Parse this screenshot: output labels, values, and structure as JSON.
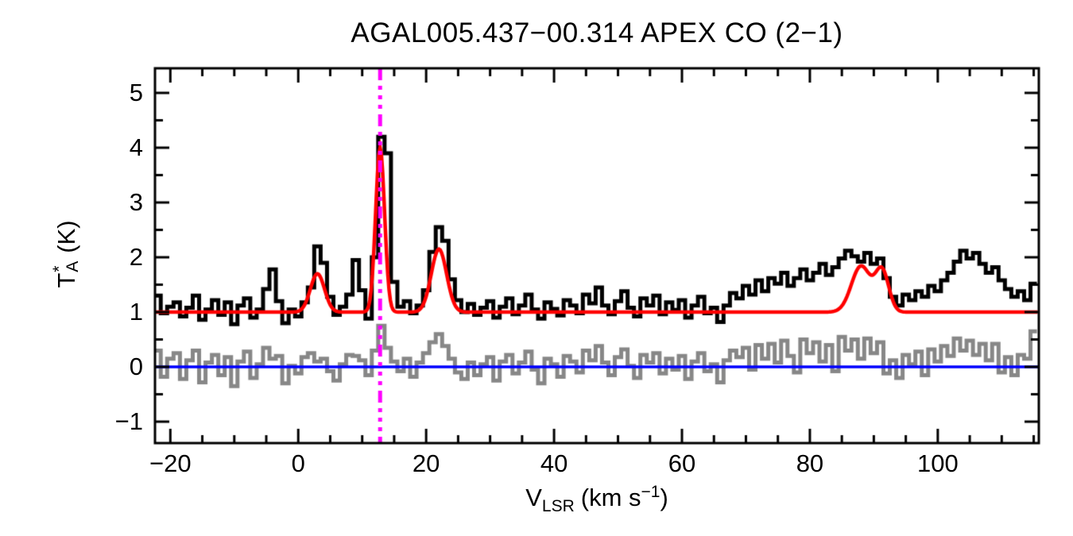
{
  "figure": {
    "background": "#ffffff"
  },
  "chart_data": {
    "type": "line",
    "title": "AGAL005.437−00.314  APEX CO (2−1)",
    "xlabel": {
      "symbol": "V",
      "symbol_sub": "LSR",
      "unit_open": "(km s",
      "unit_exp": "−1",
      "unit_close": ")"
    },
    "ylabel": {
      "symbol": "T",
      "symbol_sup": "*",
      "symbol_sub": "A",
      "unit": "(K)"
    },
    "xlim": [
      -22.4,
      115.8
    ],
    "ylim": [
      -1.39,
      5.45
    ],
    "xticks": [
      -20,
      0,
      20,
      40,
      60,
      80,
      100
    ],
    "yticks": [
      -1,
      0,
      1,
      2,
      3,
      4,
      5
    ],
    "xtick_minor_interval": 5,
    "ytick_minor_interval": 0.5,
    "grid": false,
    "legend": "none",
    "colors": {
      "spectrum": "#000000",
      "fit": "#ff0000",
      "residual": "#878787",
      "zero_line": "#0000ff",
      "marker_line": "#ff00ff",
      "axes": "#000000"
    },
    "series": [
      {
        "name": "spectrum",
        "style": "histogram-step",
        "color": "#000000",
        "x_start": -22,
        "dx": 1,
        "values": [
          1.3,
          0.98,
          1.1,
          1.18,
          0.92,
          1.08,
          1.3,
          0.86,
          1.05,
          1.22,
          0.95,
          1.18,
          0.78,
          1.12,
          1.25,
          0.9,
          1.05,
          1.42,
          1.78,
          1.2,
          0.8,
          1.05,
          0.92,
          1.18,
          1.45,
          2.2,
          1.9,
          1.28,
          0.95,
          1.1,
          1.32,
          1.95,
          1.4,
          0.88,
          2.0,
          4.2,
          3.9,
          1.55,
          1.1,
          1.2,
          0.98,
          1.12,
          1.4,
          2.1,
          2.55,
          2.3,
          1.6,
          1.22,
          1.0,
          1.15,
          0.95,
          1.08,
          1.2,
          0.9,
          1.1,
          1.25,
          0.96,
          1.12,
          1.32,
          1.05,
          0.88,
          1.18,
          1.06,
          0.94,
          1.22,
          1.12,
          0.98,
          1.32,
          1.16,
          1.45,
          1.12,
          0.96,
          1.2,
          1.38,
          1.08,
          0.92,
          1.25,
          1.12,
          1.3,
          0.96,
          1.18,
          1.04,
          1.22,
          0.9,
          1.12,
          1.28,
          0.98,
          1.08,
          0.82,
          1.12,
          1.35,
          1.25,
          1.48,
          1.32,
          1.58,
          1.38,
          1.62,
          1.52,
          1.72,
          1.48,
          1.62,
          1.78,
          1.58,
          1.72,
          1.88,
          1.68,
          1.82,
          1.98,
          2.12,
          2.02,
          1.92,
          2.08,
          1.88,
          1.98,
          1.62,
          1.28,
          1.12,
          1.32,
          1.22,
          1.38,
          1.28,
          1.48,
          1.38,
          1.58,
          1.72,
          1.92,
          2.12,
          1.98,
          2.08,
          1.88,
          1.72,
          1.82,
          1.58,
          1.42,
          1.28,
          1.38,
          1.22,
          1.52
        ]
      },
      {
        "name": "residual",
        "style": "histogram-step",
        "color": "#878787",
        "x_start": -22,
        "dx": 1,
        "values": [
          0.3,
          -0.18,
          0.15,
          0.25,
          -0.22,
          0.12,
          0.3,
          -0.28,
          0.08,
          0.22,
          -0.15,
          0.18,
          -0.35,
          0.1,
          0.28,
          -0.2,
          0.05,
          0.35,
          0.15,
          0.2,
          -0.3,
          0.02,
          -0.12,
          0.18,
          0.25,
          0.1,
          0.15,
          -0.08,
          -0.25,
          0.05,
          0.22,
          0.2,
          0.12,
          -0.15,
          0.3,
          0.75,
          0.35,
          0.1,
          -0.08,
          0.15,
          -0.18,
          0.08,
          0.25,
          0.45,
          0.6,
          0.38,
          0.15,
          -0.1,
          -0.22,
          0.08,
          -0.15,
          0.05,
          0.18,
          -0.25,
          0.1,
          0.22,
          -0.12,
          0.08,
          0.28,
          -0.05,
          -0.3,
          0.15,
          0.05,
          -0.18,
          0.2,
          0.1,
          -0.1,
          0.3,
          0.12,
          0.38,
          0.08,
          -0.15,
          0.18,
          0.32,
          0.02,
          -0.2,
          0.22,
          0.08,
          0.25,
          -0.12,
          0.15,
          -0.05,
          0.2,
          -0.22,
          0.1,
          0.25,
          -0.08,
          0.05,
          -0.28,
          0.12,
          0.3,
          0.18,
          0.35,
          -0.05,
          0.4,
          0.15,
          0.42,
          0.08,
          0.48,
          0.2,
          -0.1,
          0.5,
          0.25,
          0.45,
          0.1,
          0.4,
          -0.08,
          0.55,
          0.3,
          0.5,
          0.15,
          0.52,
          0.25,
          0.45,
          -0.12,
          0.12,
          -0.2,
          0.22,
          0.05,
          0.28,
          -0.15,
          0.32,
          0.1,
          0.38,
          0.2,
          0.52,
          0.3,
          0.48,
          0.22,
          0.42,
          0.12,
          0.42,
          -0.1,
          0.18,
          -0.15,
          0.22,
          0.15,
          0.65
        ]
      },
      {
        "name": "gaussian_fit",
        "style": "curve",
        "color": "#ff0000",
        "baseline": 1.0,
        "gaussians": [
          {
            "center": 3.0,
            "amplitude": 0.7,
            "sigma": 1.1
          },
          {
            "center": 12.8,
            "amplitude": 3.0,
            "sigma": 0.7
          },
          {
            "center": 22.0,
            "amplitude": 1.15,
            "sigma": 1.2
          },
          {
            "center": 88.0,
            "amplitude": 0.84,
            "sigma": 1.5
          },
          {
            "center": 91.3,
            "amplitude": 0.74,
            "sigma": 1.05
          }
        ]
      }
    ],
    "zero_line": {
      "value": 0,
      "color": "#0000ff"
    },
    "marker_line": {
      "value": 12.8,
      "color": "#ff00ff",
      "linestyle": "dash-dot-dot-dot",
      "label": "systemic-velocity-marker"
    }
  }
}
